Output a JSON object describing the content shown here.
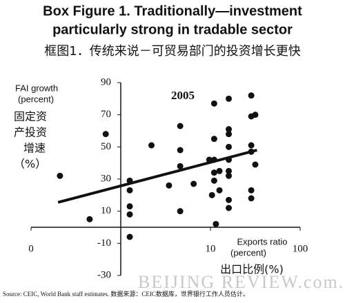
{
  "chart_data": {
    "type": "scatter",
    "title": [
      "Box Figure 1. Traditionally—investment",
      "particularly strong in tradable sector"
    ],
    "subtitle": "框图1．传统来说－可贸易部门的投资增长更快",
    "y_label": [
      "FAI growth",
      "(percent)"
    ],
    "y_label_cn": [
      "固定资",
      "产投资",
      "增速",
      "（%）"
    ],
    "x_label": [
      "Exports ratio",
      "(percent)"
    ],
    "x_label_cn": "出口比例(%)",
    "annotation": "2005",
    "source": "Source: CEIC, World Bank staff estimates.    数据来源：CEIC数据库，世界银行工作人员估计。",
    "watermark": "BEIJING REVIEW.com.cn",
    "x_log": true,
    "xlim": [
      0.1,
      100
    ],
    "ylim": [
      -30,
      90
    ],
    "xticks": [
      {
        "value": 0.1,
        "label": "0"
      },
      10,
      100
    ],
    "yticks": [
      -30,
      -10,
      10,
      30,
      50,
      70,
      90
    ],
    "color": "#111111",
    "x": [
      0.21,
      0.68,
      0.45,
      1.26,
      1.26,
      1.26,
      1.26,
      1.26,
      2.2,
      3.45,
      4.6,
      4.6,
      4.6,
      4.6,
      6.5,
      11,
      11,
      9.7,
      11,
      11,
      11,
      10.4,
      11.5,
      12.6,
      12.6,
      16,
      16,
      16,
      16,
      16,
      16,
      16,
      16,
      16,
      28.5,
      28.5,
      31.6,
      28.5,
      28.5,
      28.5,
      28.5,
      31.6
    ],
    "values": [
      32,
      58,
      5,
      29,
      23,
      13,
      8,
      -6,
      51,
      26,
      63,
      48,
      38,
      10,
      27,
      77,
      55,
      42,
      42,
      34,
      29,
      20,
      2,
      35,
      23,
      80,
      61,
      58,
      50,
      42,
      35,
      32,
      17,
      12,
      82,
      69,
      70,
      51,
      47,
      23,
      18,
      39
    ],
    "trendline": {
      "x": [
        0.2,
        33
      ],
      "y": [
        15.5,
        48
      ]
    }
  }
}
